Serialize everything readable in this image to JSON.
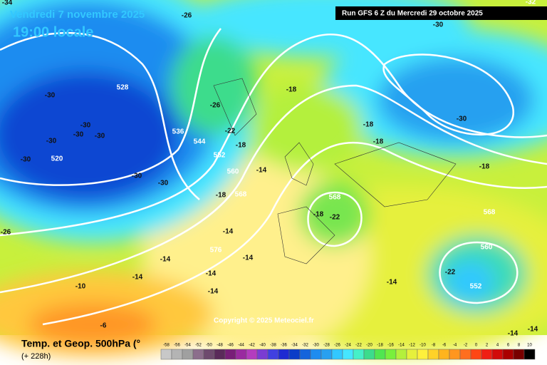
{
  "header": {
    "title": "Vendredi 7 novembre 2025",
    "time": "19:00 locale",
    "run": "Run GFS 6 Z du Mercredi 29 octobre 2025"
  },
  "map_labels": [
    "-34",
    "-26",
    "-30",
    "-32",
    "528",
    "-18",
    "-30",
    "-30",
    "-30",
    "-30",
    "-30",
    "-30",
    "-26",
    "536",
    "-22",
    "-18",
    "-18",
    "544",
    "520",
    "-30",
    "552",
    "-18",
    "-14",
    "560",
    "-30",
    "-30",
    "-18",
    "568",
    "-18",
    "568",
    "-18",
    "-22",
    "568",
    "-14",
    "-26",
    "560",
    "576",
    "-14",
    "-14",
    "-22",
    "-14",
    "-14",
    "-14",
    "552",
    "-10",
    "-14",
    "-6",
    "-14",
    "-14"
  ],
  "copyright": "Copyright © 2025 Meteociel.fr",
  "footer": {
    "title": "Temp. et Geop. 500hPa (°",
    "lead": "(+ 228h)"
  },
  "legend": {
    "values": [
      -58,
      -56,
      -54,
      -52,
      -50,
      -48,
      -46,
      -44,
      -42,
      -40,
      -38,
      -36,
      -34,
      -32,
      -30,
      -28,
      -26,
      -24,
      -22,
      -20,
      -18,
      -16,
      -14,
      -12,
      -10,
      -8,
      -6,
      -4,
      -2,
      0,
      2,
      4,
      6,
      8,
      10
    ],
    "colors": [
      "#c8c8c8",
      "#b4b4b4",
      "#a0a0a0",
      "#8c6e8c",
      "#6e4a6e",
      "#5a2a5a",
      "#781e78",
      "#9a2aa0",
      "#b43cbe",
      "#7a3cd2",
      "#4040e0",
      "#1e2ad2",
      "#0a3cc8",
      "#1464dc",
      "#1e8cf0",
      "#28a0f0",
      "#32c8ff",
      "#46e6ff",
      "#46f0c8",
      "#3cdc8c",
      "#50e650",
      "#78f03c",
      "#b4f03c",
      "#e6f03c",
      "#fff03c",
      "#ffd228",
      "#ffb41e",
      "#ff961e",
      "#ff6e1e",
      "#ff4614",
      "#f01e14",
      "#d20a0a",
      "#aa0000",
      "#780000",
      "#000000"
    ]
  }
}
